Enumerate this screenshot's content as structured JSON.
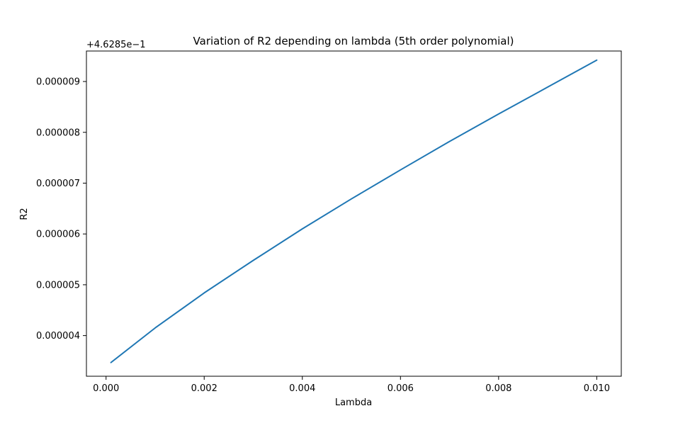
{
  "chart_data": {
    "type": "line",
    "title": "Variation of R2 depending on lambda (5th order polynomial)",
    "xlabel": "Lambda",
    "ylabel": "R2",
    "y_offset_label": "+4.6285e−1",
    "xlim": [
      -0.0004,
      0.0105
    ],
    "ylim": [
      3.2e-06,
      9.6e-06
    ],
    "x_ticks": [
      0.0,
      0.002,
      0.004,
      0.006,
      0.008,
      0.01
    ],
    "x_tick_labels": [
      "0.000",
      "0.002",
      "0.004",
      "0.006",
      "0.008",
      "0.010"
    ],
    "y_ticks": [
      4e-06,
      5e-06,
      6e-06,
      7e-06,
      8e-06,
      9e-06
    ],
    "y_tick_labels": [
      "0.000004",
      "0.000005",
      "0.000006",
      "0.000007",
      "0.000008",
      "0.000009"
    ],
    "grid": false,
    "series": [
      {
        "color": "#1f77b4",
        "x": [
          0.0001,
          0.001,
          0.002,
          0.003,
          0.004,
          0.005,
          0.006,
          0.007,
          0.008,
          0.009,
          0.01
        ],
        "y": [
          3.47e-06,
          4.15e-06,
          4.84e-06,
          5.48e-06,
          6.1e-06,
          6.69e-06,
          7.26e-06,
          7.82e-06,
          8.36e-06,
          8.89e-06,
          9.42e-06
        ]
      }
    ]
  }
}
